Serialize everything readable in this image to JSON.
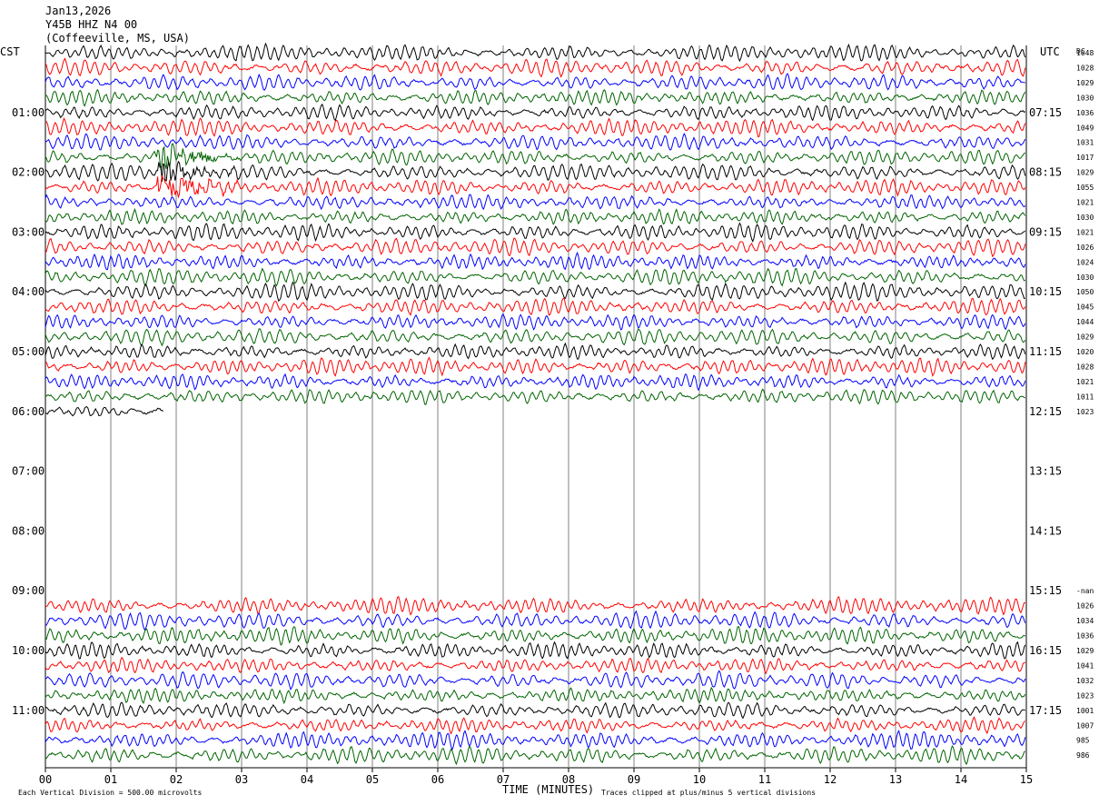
{
  "header": {
    "date": "Jan13,2026",
    "station": "Y45B HHZ N4 00",
    "location": "(Coffeeville, MS, USA)"
  },
  "left_tz": "CST",
  "right_tz": "UTC",
  "dc_label": "DC",
  "footer": {
    "xlabel": "TIME (MINUTES)",
    "scale_note": "Each Vertical Division =  500.00 microvolts",
    "clip_note": "Traces clipped at plus/minus 5 vertical divisions"
  },
  "colors": {
    "trace_cycle": [
      "#000000",
      "#ff0000",
      "#0000ff",
      "#006400"
    ],
    "gridline": "#808080"
  },
  "chart_data": {
    "type": "helicorder",
    "x_range_minutes": [
      0,
      15
    ],
    "x_ticks": [
      "00",
      "01",
      "02",
      "03",
      "04",
      "05",
      "06",
      "07",
      "08",
      "09",
      "10",
      "11",
      "12",
      "13",
      "14",
      "15"
    ],
    "left_hour_labels": [
      "01:00",
      "02:00",
      "03:00",
      "04:00",
      "05:00",
      "06:00",
      "07:00",
      "08:00",
      "09:00",
      "10:00",
      "11:00"
    ],
    "right_hour_labels": [
      "07:15",
      "08:15",
      "09:15",
      "10:15",
      "11:15",
      "12:15",
      "13:15",
      "14:15",
      "15:15",
      "16:15",
      "17:15"
    ],
    "rows_per_hour": 4,
    "total_rows": 48,
    "dc_offsets": [
      "1048",
      "1028",
      "1029",
      "1030",
      "1036",
      "1049",
      "1031",
      "1017",
      "1029",
      "1055",
      "1021",
      "1030",
      "1021",
      "1026",
      "1024",
      "1030",
      "1050",
      "1045",
      "1044",
      "1029",
      "1020",
      "1028",
      "1021",
      "1011",
      "1023",
      "",
      "",
      "",
      "",
      "",
      "",
      "",
      "",
      "",
      "",
      "",
      "-nan",
      "1026",
      "1034",
      "1036",
      "1029",
      "1041",
      "1032",
      "1023",
      "1001",
      "1007",
      "985",
      "986"
    ],
    "rows_with_data": [
      0,
      1,
      2,
      3,
      4,
      5,
      6,
      7,
      8,
      9,
      10,
      11,
      12,
      13,
      14,
      15,
      16,
      17,
      18,
      19,
      20,
      21,
      22,
      23,
      24,
      37,
      38,
      39,
      40,
      41,
      42,
      43,
      44,
      45,
      46,
      47
    ],
    "partial_row_end_minute": {
      "24": 1.8
    },
    "events": [
      {
        "start_minute": 1.7,
        "duration_minutes": 1.8,
        "rows": [
          7,
          8,
          9
        ]
      }
    ]
  }
}
